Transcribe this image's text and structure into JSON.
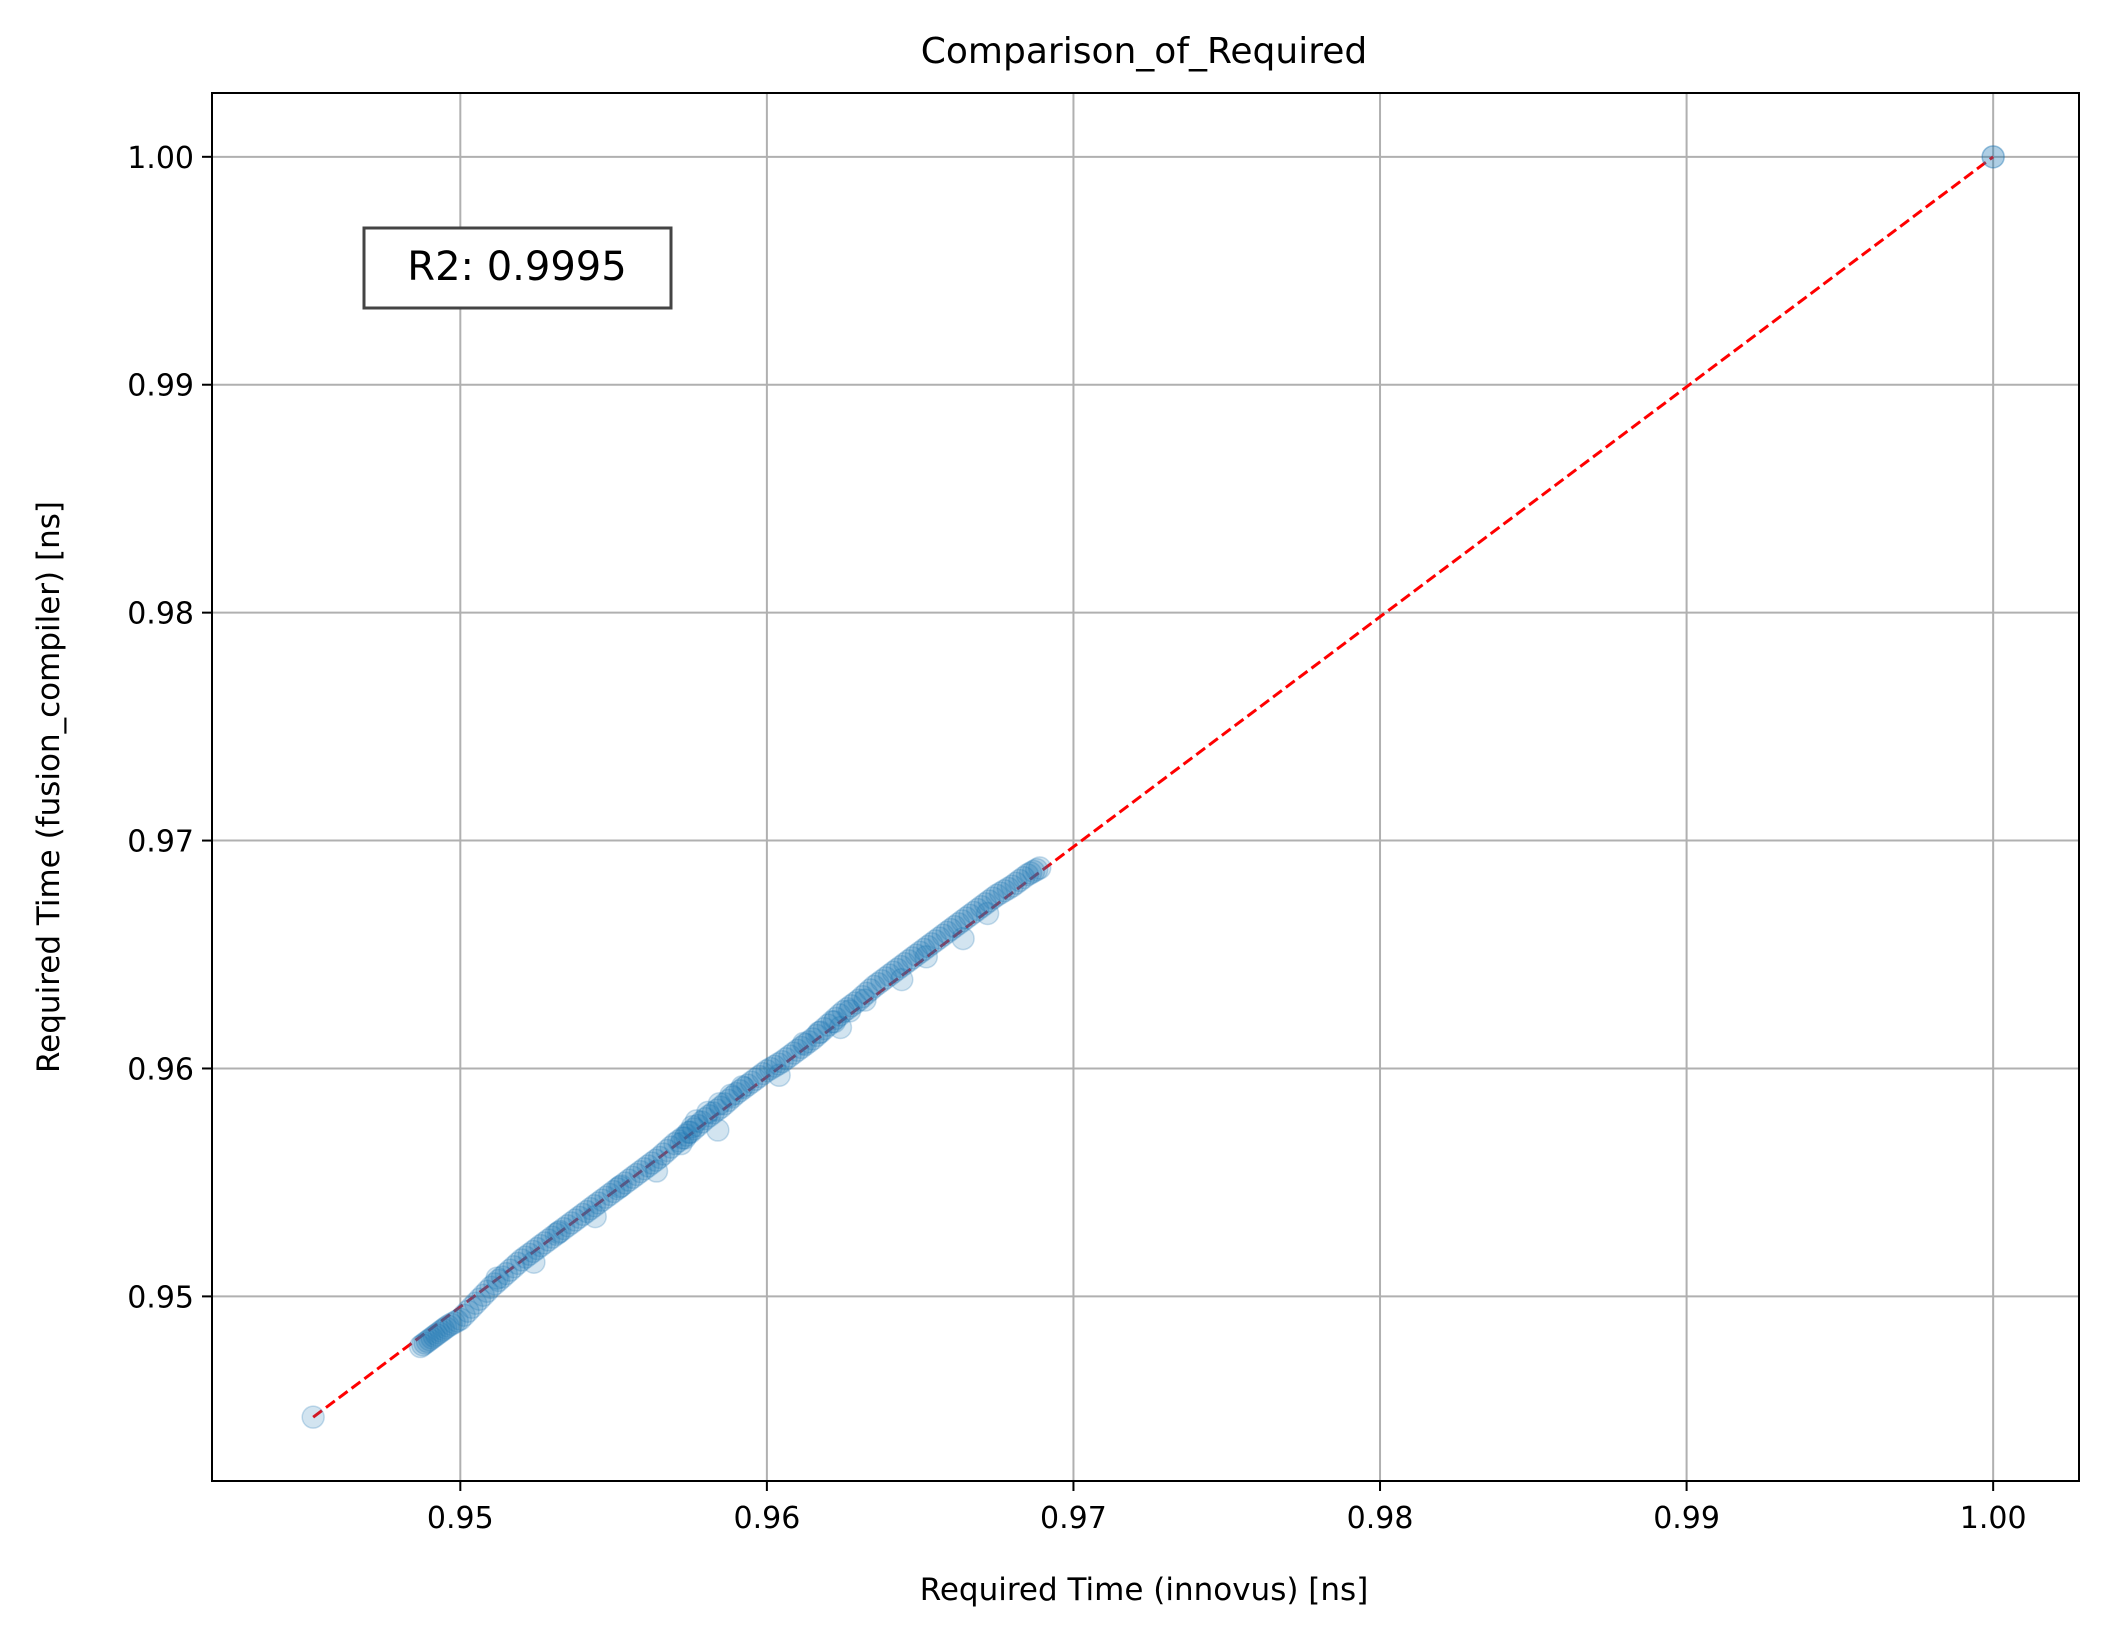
{
  "chart_data": {
    "type": "scatter",
    "title": "Comparison_of_Required",
    "xlabel": "Required Time (innovus) [ns]",
    "ylabel": "Required Time (fusion_compiler) [ns]",
    "xlim": [
      0.9419,
      1.0028
    ],
    "ylim": [
      0.9419,
      1.0028
    ],
    "xticks": [
      0.95,
      0.96,
      0.97,
      0.98,
      0.99,
      1.0
    ],
    "yticks": [
      0.95,
      0.96,
      0.97,
      0.98,
      0.99,
      1.0
    ],
    "xtick_labels": [
      "0.95",
      "0.96",
      "0.97",
      "0.98",
      "0.99",
      "1.00"
    ],
    "ytick_labels": [
      "0.95",
      "0.96",
      "0.97",
      "0.98",
      "0.99",
      "1.00"
    ],
    "grid": true,
    "annotation": "R2: 0.9995",
    "marker_color": "#1f77b4",
    "marker_alpha": 0.2,
    "reference_line": {
      "label": "",
      "color": "#ff0000",
      "style": "dashed",
      "x": [
        0.9452,
        1.0
      ],
      "y": [
        0.9447,
        1.0
      ]
    },
    "series": [
      {
        "x": [
          0.9452,
          0.9487,
          0.949,
          0.9493,
          0.9496,
          0.95,
          0.9505,
          0.951,
          0.9515,
          0.952,
          0.9525,
          0.953,
          0.9535,
          0.954,
          0.9545,
          0.955,
          0.9555,
          0.956,
          0.9565,
          0.957,
          0.9575,
          0.958,
          0.9585,
          0.959,
          0.9595,
          0.96,
          0.9605,
          0.961,
          0.9615,
          0.962,
          0.9625,
          0.963,
          0.9635,
          0.964,
          0.9645,
          0.965,
          0.9655,
          0.966,
          0.9665,
          0.967,
          0.9675,
          0.968,
          0.9685,
          0.9689,
          0.9512,
          0.9532,
          0.9552,
          0.9572,
          0.9577,
          0.9592,
          0.9612,
          0.9632,
          0.9652,
          0.9672,
          0.9524,
          0.9544,
          0.9564,
          0.9584,
          0.9604,
          0.9624,
          0.9644,
          0.9664,
          1.0,
          1.0
        ],
        "y": [
          0.9447,
          0.9478,
          0.9481,
          0.9484,
          0.9487,
          0.949,
          0.9497,
          0.9504,
          0.951,
          0.9516,
          0.9521,
          0.9526,
          0.9531,
          0.9536,
          0.9541,
          0.9546,
          0.9551,
          0.9556,
          0.9561,
          0.9567,
          0.9572,
          0.9578,
          0.9583,
          0.9589,
          0.9594,
          0.9599,
          0.9603,
          0.9608,
          0.9613,
          0.9619,
          0.9625,
          0.963,
          0.9636,
          0.9641,
          0.9646,
          0.9651,
          0.9656,
          0.9661,
          0.9666,
          0.9671,
          0.9676,
          0.968,
          0.9685,
          0.9688,
          0.9508,
          0.9528,
          0.9548,
          0.9567,
          0.9577,
          0.9592,
          0.9611,
          0.963,
          0.9649,
          0.9668,
          0.9515,
          0.9535,
          0.9555,
          0.9573,
          0.9597,
          0.9618,
          0.9639,
          0.9657,
          1.0,
          1.0
        ]
      }
    ]
  }
}
